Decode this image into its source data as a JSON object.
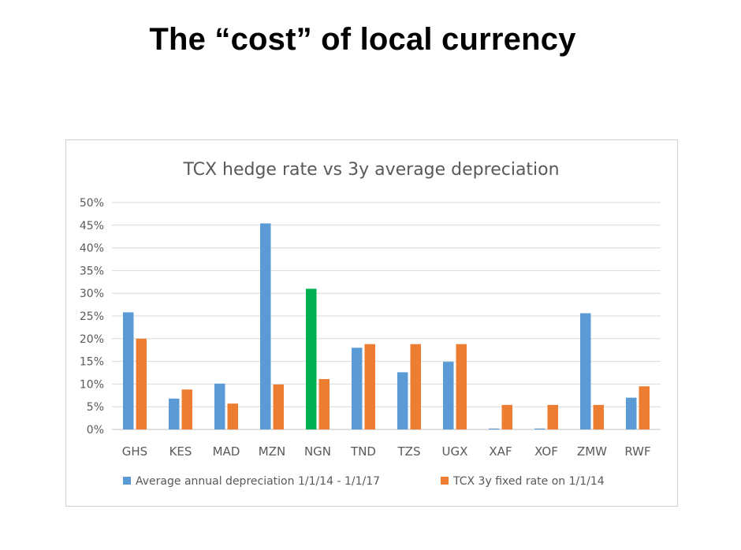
{
  "slide": {
    "title": "The “cost” of local currency"
  },
  "colors": {
    "series1": "#5B9BD5",
    "series2": "#ED7D31",
    "highlight": "#00B050",
    "grid": "#D9D9D9",
    "text": "#595959"
  },
  "chart_data": {
    "type": "bar",
    "title": "TCX hedge rate vs 3y average depreciation",
    "xlabel": "",
    "ylabel": "",
    "ylim": [
      0,
      0.5
    ],
    "yticks": [
      "0%",
      "5%",
      "10%",
      "15%",
      "20%",
      "25%",
      "30%",
      "35%",
      "40%",
      "45%",
      "50%"
    ],
    "grid": true,
    "legend": "bottom",
    "categories": [
      "GHS",
      "KES",
      "MAD",
      "MZN",
      "NGN",
      "TND",
      "TZS",
      "UGX",
      "XAF",
      "XOF",
      "ZMW",
      "RWF"
    ],
    "series": [
      {
        "name": "Average annual depreciation 1/1/14 - 1/1/17",
        "values": [
          0.258,
          0.068,
          0.101,
          0.454,
          0.31,
          0.18,
          0.126,
          0.149,
          0.002,
          0.002,
          0.256,
          0.07
        ],
        "highlight_category": "NGN"
      },
      {
        "name": "TCX 3y fixed rate on 1/1/14",
        "values": [
          0.2,
          0.088,
          0.057,
          0.099,
          0.111,
          0.188,
          0.188,
          0.188,
          0.054,
          0.054,
          0.054,
          0.095
        ]
      }
    ]
  }
}
